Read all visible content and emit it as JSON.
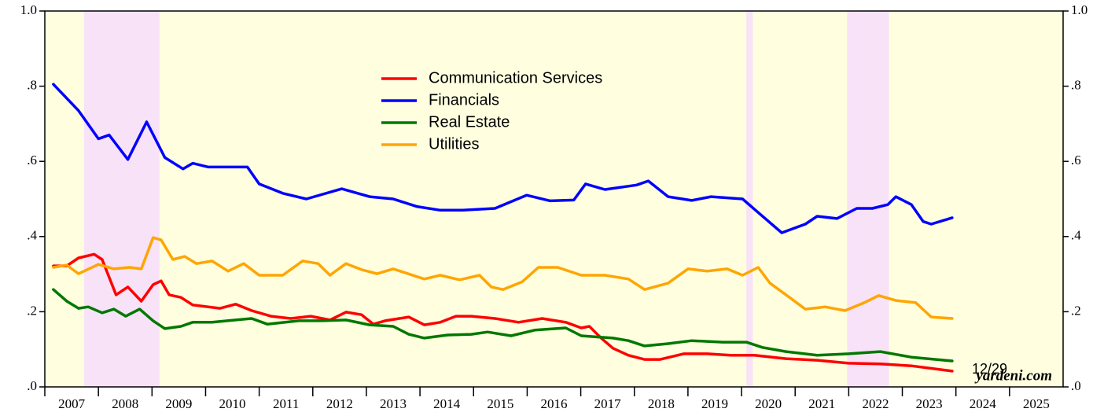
{
  "chart_data": {
    "type": "line",
    "categories": [
      "2007",
      "2008",
      "2009",
      "2010",
      "2011",
      "2012",
      "2013",
      "2014",
      "2015",
      "2016",
      "2017",
      "2018",
      "2019",
      "2020",
      "2021",
      "2022",
      "2023",
      "2024",
      "2025"
    ],
    "xlim": [
      2007,
      2026
    ],
    "ylim": [
      0,
      1
    ],
    "yticks": [
      {
        "value": 0,
        "label": ".0"
      },
      {
        "value": 0.2,
        "label": ".2"
      },
      {
        "value": 0.4,
        "label": ".4"
      },
      {
        "value": 0.6,
        "label": ".6"
      },
      {
        "value": 0.8,
        "label": ".8"
      },
      {
        "value": 1,
        "label": "1.0"
      }
    ],
    "background": "#ffffe0",
    "shaded_periods": [
      [
        2007.73,
        2009.14
      ],
      [
        2020.09,
        2020.21
      ],
      [
        2021.97,
        2022.75
      ]
    ],
    "shade_color": "#f8e2f8",
    "legend": "top-center",
    "series": [
      {
        "name": "Communication Services",
        "color": "#ff0000",
        "x": [
          2007.16,
          2007.41,
          2007.63,
          2007.92,
          2008.07,
          2008.33,
          2008.55,
          2008.8,
          2009.02,
          2009.17,
          2009.32,
          2009.54,
          2009.76,
          2010.27,
          2010.56,
          2010.86,
          2011.22,
          2011.59,
          2011.96,
          2012.32,
          2012.62,
          2012.91,
          2013.13,
          2013.35,
          2013.79,
          2014.08,
          2014.38,
          2014.67,
          2014.96,
          2015.4,
          2015.84,
          2016.28,
          2016.72,
          2017.01,
          2017.16,
          2017.38,
          2017.6,
          2017.89,
          2018.19,
          2018.48,
          2018.92,
          2019.36,
          2019.8,
          2020.24,
          2020.83,
          2021.41,
          2022.0,
          2022.59,
          2023.17,
          2023.93
        ],
        "values": [
          0.322,
          0.322,
          0.343,
          0.353,
          0.339,
          0.245,
          0.266,
          0.228,
          0.272,
          0.282,
          0.245,
          0.238,
          0.218,
          0.209,
          0.22,
          0.203,
          0.188,
          0.182,
          0.188,
          0.178,
          0.199,
          0.192,
          0.167,
          0.176,
          0.186,
          0.165,
          0.172,
          0.188,
          0.188,
          0.182,
          0.172,
          0.182,
          0.172,
          0.157,
          0.161,
          0.13,
          0.103,
          0.084,
          0.073,
          0.073,
          0.088,
          0.088,
          0.084,
          0.084,
          0.075,
          0.071,
          0.063,
          0.061,
          0.056,
          0.042
        ]
      },
      {
        "name": "Financials",
        "color": "#0000ff",
        "x": [
          2007.16,
          2007.63,
          2008.0,
          2008.2,
          2008.55,
          2008.9,
          2009.24,
          2009.58,
          2009.76,
          2010.05,
          2010.42,
          2010.78,
          2011.0,
          2011.44,
          2011.88,
          2012.54,
          2013.06,
          2013.5,
          2013.94,
          2014.38,
          2014.8,
          2015.4,
          2015.99,
          2016.43,
          2016.87,
          2017.09,
          2017.45,
          2018.04,
          2018.26,
          2018.63,
          2019.07,
          2019.43,
          2020.02,
          2020.31,
          2020.75,
          2021.19,
          2021.41,
          2021.78,
          2022.15,
          2022.44,
          2022.73,
          2022.88,
          2023.17,
          2023.39,
          2023.54,
          2023.93
        ],
        "values": [
          0.805,
          0.735,
          0.66,
          0.67,
          0.605,
          0.705,
          0.61,
          0.58,
          0.595,
          0.585,
          0.585,
          0.585,
          0.54,
          0.515,
          0.5,
          0.527,
          0.506,
          0.5,
          0.48,
          0.47,
          0.47,
          0.475,
          0.51,
          0.495,
          0.497,
          0.54,
          0.525,
          0.537,
          0.548,
          0.506,
          0.496,
          0.506,
          0.5,
          0.464,
          0.41,
          0.433,
          0.454,
          0.448,
          0.475,
          0.475,
          0.485,
          0.506,
          0.485,
          0.44,
          0.433,
          0.45
        ]
      },
      {
        "name": "Real Estate",
        "color": "#007800",
        "x": [
          2007.16,
          2007.41,
          2007.63,
          2007.81,
          2008.07,
          2008.29,
          2008.51,
          2008.77,
          2009.02,
          2009.24,
          2009.54,
          2009.76,
          2010.12,
          2010.56,
          2010.86,
          2011.15,
          2011.74,
          2012.18,
          2012.62,
          2013.06,
          2013.5,
          2013.79,
          2014.08,
          2014.52,
          2014.96,
          2015.26,
          2015.7,
          2016.14,
          2016.72,
          2017.01,
          2017.6,
          2017.89,
          2018.19,
          2018.63,
          2019.07,
          2019.65,
          2020.09,
          2020.39,
          2020.83,
          2021.41,
          2022.0,
          2022.59,
          2023.17,
          2023.93
        ],
        "values": [
          0.259,
          0.228,
          0.209,
          0.213,
          0.197,
          0.207,
          0.188,
          0.207,
          0.176,
          0.155,
          0.161,
          0.172,
          0.172,
          0.178,
          0.182,
          0.167,
          0.176,
          0.176,
          0.178,
          0.165,
          0.161,
          0.14,
          0.13,
          0.138,
          0.14,
          0.146,
          0.136,
          0.151,
          0.157,
          0.136,
          0.13,
          0.123,
          0.109,
          0.115,
          0.123,
          0.119,
          0.119,
          0.105,
          0.094,
          0.084,
          0.088,
          0.094,
          0.079,
          0.069
        ]
      },
      {
        "name": "Utilities",
        "color": "#ffa500",
        "x": [
          2007.16,
          2007.41,
          2007.63,
          2008.0,
          2008.29,
          2008.58,
          2008.8,
          2009.02,
          2009.17,
          2009.39,
          2009.61,
          2009.83,
          2010.12,
          2010.42,
          2010.71,
          2011.0,
          2011.44,
          2011.81,
          2012.1,
          2012.32,
          2012.62,
          2012.91,
          2013.2,
          2013.5,
          2014.08,
          2014.38,
          2014.74,
          2015.11,
          2015.33,
          2015.55,
          2015.91,
          2016.21,
          2016.57,
          2017.01,
          2017.45,
          2017.89,
          2018.19,
          2018.63,
          2019.0,
          2019.36,
          2019.73,
          2020.02,
          2020.31,
          2020.53,
          2020.83,
          2021.19,
          2021.56,
          2021.93,
          2022.29,
          2022.56,
          2022.88,
          2023.25,
          2023.54,
          2023.93
        ],
        "values": [
          0.318,
          0.324,
          0.301,
          0.326,
          0.314,
          0.318,
          0.314,
          0.397,
          0.391,
          0.339,
          0.347,
          0.328,
          0.335,
          0.308,
          0.328,
          0.297,
          0.297,
          0.335,
          0.328,
          0.297,
          0.328,
          0.312,
          0.301,
          0.314,
          0.287,
          0.297,
          0.285,
          0.297,
          0.266,
          0.259,
          0.28,
          0.318,
          0.318,
          0.297,
          0.297,
          0.287,
          0.259,
          0.276,
          0.314,
          0.308,
          0.314,
          0.297,
          0.318,
          0.276,
          0.245,
          0.207,
          0.213,
          0.203,
          0.224,
          0.243,
          0.23,
          0.224,
          0.186,
          0.182
        ]
      }
    ],
    "annotations": [
      {
        "text": "12/29",
        "color": "#ff0000"
      },
      {
        "text": "yardeni.com",
        "color": "#000000"
      }
    ]
  }
}
